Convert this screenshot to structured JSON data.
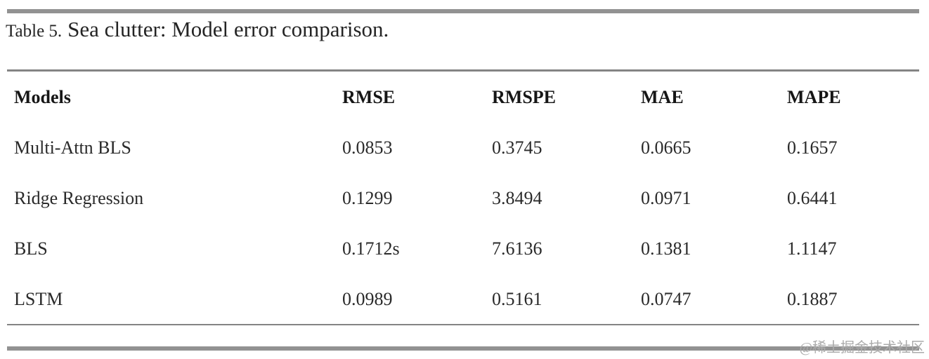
{
  "caption": {
    "label": "Table 5.",
    "title": "Sea clutter: Model error comparison."
  },
  "table": {
    "headers": [
      "Models",
      "RMSE",
      "RMSPE",
      "MAE",
      "MAPE"
    ],
    "rows": [
      {
        "model": "Multi-Attn BLS",
        "rmse": "0.0853",
        "rmspe": "0.3745",
        "mae": "0.0665",
        "mape": "0.1657",
        "emphasized": true
      },
      {
        "model": "Ridge Regression",
        "rmse": "0.1299",
        "rmspe": "3.8494",
        "mae": "0.0971",
        "mape": "0.6441",
        "emphasized": false
      },
      {
        "model": "BLS",
        "rmse": "0.1712s",
        "rmspe": "7.6136",
        "mae": "0.1381",
        "mape": "1.1147",
        "emphasized": false
      },
      {
        "model": "LSTM",
        "rmse": "0.0989",
        "rmspe": "0.5161",
        "mae": "0.0747",
        "mape": "0.1887",
        "emphasized": false
      }
    ]
  },
  "watermark": {
    "text": "@稀土掘金技术社区"
  },
  "colors": {
    "rule_thick": "#929292",
    "rule_thin": "#848484",
    "text": "#1c1c1c",
    "watermark": "#ababab",
    "background": "#ffffff"
  }
}
